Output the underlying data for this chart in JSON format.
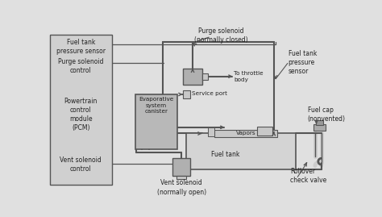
{
  "bg_color": "#e0e0e0",
  "line_color": "#555555",
  "box_fill": "#b0b0b0",
  "box_fill_light": "#c8c8c8",
  "pcm_fill": "#d0d0d0",
  "canister_fill": "#b8b8b8",
  "ft_fill": "#d4d4d4",
  "figsize": [
    4.74,
    2.69
  ],
  "dpi": 100,
  "labels": {
    "ftps_left": "Fuel tank\npressure sensor",
    "psc": "Purge solenoid\ncontrol",
    "pcm": "Powertrain\ncontrol\nmodule\n(PCM)",
    "vsc": "Vent solenoid\ncontrol",
    "purge_solenoid": "Purge solenoid\n(normally closed)",
    "evap_canister": "Evaporative\nsystem\ncanister",
    "throttle": "To throttle\nbody",
    "service_port": "Service port",
    "ftps_right": "Fuel tank\npressure\nsensor",
    "fuel_cap": "Fuel cap\n(nonvented)",
    "vapors": "Vapors",
    "fuel_tank": "Fuel tank",
    "vent_solenoid": "Vent solenoid\n(normally open)",
    "rollover": "Rollover\ncheck valve"
  }
}
